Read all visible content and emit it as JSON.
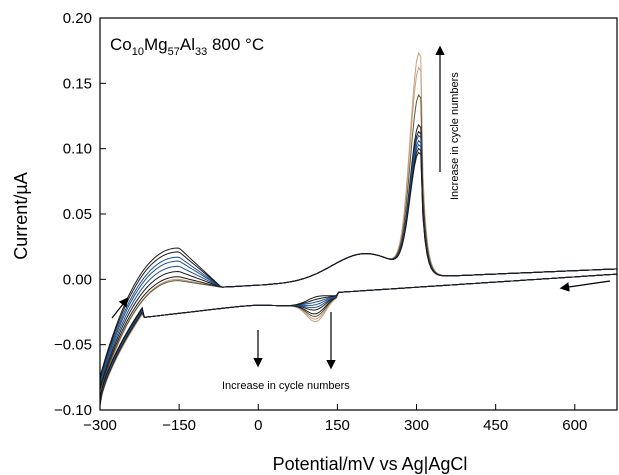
{
  "chart_data": {
    "type": "line",
    "title_parts": {
      "el1": "Co",
      "sub1": "10",
      "el2": "Mg",
      "sub2": "57",
      "el3": "Al",
      "sub3": "33",
      "suffix": " 800 °C"
    },
    "xlabel": "Potential/mV vs Ag|AgCl",
    "ylabel": "Current/µA",
    "xlim": [
      -300,
      680
    ],
    "ylim": [
      -0.1,
      0.2
    ],
    "xticks": [
      "−300",
      "−150",
      "0",
      "150",
      "300",
      "450",
      "600"
    ],
    "xtick_values": [
      -300,
      -150,
      0,
      150,
      300,
      450,
      600
    ],
    "yticks": [
      "0.20",
      "0.15",
      "0.10",
      "0.05",
      "0.00",
      "−0.05",
      "−0.10"
    ],
    "ytick_values": [
      0.2,
      0.15,
      0.1,
      0.05,
      0.0,
      -0.05,
      -0.1
    ],
    "grid": false,
    "annotations": {
      "top": "Increase in cycle numbers",
      "bottom": "Increase in cycle numbers"
    },
    "colors": {
      "dark": "#1a1a1a",
      "blue": "#1f4e8c",
      "tan": "#c8a07e",
      "olive": "#5a5a3a"
    },
    "series": [
      {
        "anodic_peak": 0.187,
        "ox_hump": 0.0,
        "reduction_dip": -0.042,
        "color": "tan"
      },
      {
        "anodic_peak": 0.176,
        "ox_hump": 0.0,
        "reduction_dip": -0.04,
        "color": "tan"
      },
      {
        "anodic_peak": 0.155,
        "ox_hump": -0.001,
        "reduction_dip": -0.038,
        "color": "olive"
      },
      {
        "anodic_peak": 0.132,
        "ox_hump": 0.002,
        "reduction_dip": -0.036,
        "color": "dark"
      },
      {
        "anodic_peak": 0.127,
        "ox_hump": 0.006,
        "reduction_dip": -0.033,
        "color": "dark"
      },
      {
        "anodic_peak": 0.124,
        "ox_hump": 0.01,
        "reduction_dip": -0.031,
        "color": "blue"
      },
      {
        "anodic_peak": 0.12,
        "ox_hump": 0.014,
        "reduction_dip": -0.029,
        "color": "blue"
      },
      {
        "anodic_peak": 0.117,
        "ox_hump": 0.017,
        "reduction_dip": -0.027,
        "color": "blue"
      },
      {
        "anodic_peak": 0.114,
        "ox_hump": 0.021,
        "reduction_dip": -0.025,
        "color": "dark"
      },
      {
        "anodic_peak": 0.111,
        "ox_hump": 0.024,
        "reduction_dip": -0.023,
        "color": "dark"
      }
    ]
  }
}
